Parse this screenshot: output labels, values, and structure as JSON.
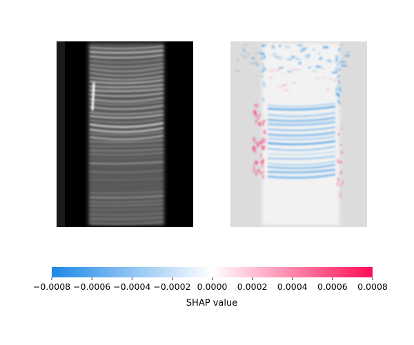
{
  "chart_data": {
    "type": "heatmap",
    "panels": [
      {
        "name": "input-image",
        "colormap": "grayscale",
        "description_shown": false
      },
      {
        "name": "shap-overlay",
        "colormap": "blue-white-red",
        "description_shown": false
      }
    ],
    "colorbar": {
      "label": "SHAP value",
      "range": [
        -0.0008,
        0.0008
      ],
      "ticks": [
        -0.0008,
        -0.0006,
        -0.0004,
        -0.0002,
        0.0,
        0.0002,
        0.0004,
        0.0006,
        0.0008
      ],
      "tick_labels": [
        "−0.0008",
        "−0.0006",
        "−0.0004",
        "−0.0002",
        "0.0000",
        "0.0002",
        "0.0004",
        "0.0006",
        "0.0008"
      ],
      "colors": {
        "negative": "#1e88e5",
        "zero": "#ffffff",
        "positive": "#ff0d57"
      }
    }
  }
}
